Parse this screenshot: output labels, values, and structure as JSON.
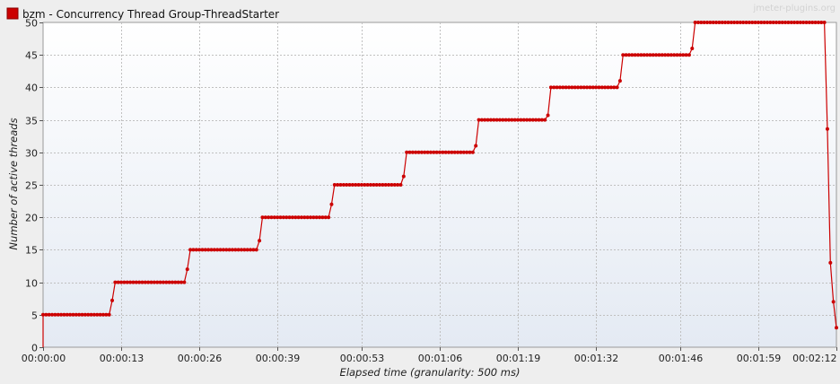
{
  "watermark": "jmeter-plugins.org",
  "chart_data": {
    "type": "line",
    "title": "",
    "xlabel": "Elapsed time (granularity: 500 ms)",
    "ylabel": "Number of active threads",
    "xlim_seconds": [
      0,
      132
    ],
    "ylim": [
      0,
      50
    ],
    "y_ticks": [
      0,
      5,
      10,
      15,
      20,
      25,
      30,
      35,
      40,
      45,
      50
    ],
    "x_ticks": [
      {
        "seconds": 0,
        "label": "00:00:00"
      },
      {
        "seconds": 13,
        "label": "00:00:13"
      },
      {
        "seconds": 26,
        "label": "00:00:26"
      },
      {
        "seconds": 39,
        "label": "00:00:39"
      },
      {
        "seconds": 53,
        "label": "00:00:53"
      },
      {
        "seconds": 66,
        "label": "00:01:06"
      },
      {
        "seconds": 79,
        "label": "00:01:19"
      },
      {
        "seconds": 92,
        "label": "00:01:32"
      },
      {
        "seconds": 106,
        "label": "00:01:46"
      },
      {
        "seconds": 119,
        "label": "00:01:59"
      },
      {
        "seconds": 132,
        "label": "00:02:12"
      }
    ],
    "grid": true,
    "legend_position": "top-left",
    "colors": {
      "series": "#cc0000",
      "grid": "#c0c0c0",
      "background_top": "#ffffff",
      "background_bottom": "#e4eaf3"
    },
    "series": [
      {
        "name": "bzm - Concurrency Thread Group-ThreadStarter",
        "steps": [
          {
            "t_start": 0,
            "t_end": 11,
            "value": 5
          },
          {
            "t_start": 11.5,
            "t_end": 11.5,
            "value": 7.2
          },
          {
            "t_start": 12,
            "t_end": 23.5,
            "value": 10
          },
          {
            "t_start": 24,
            "t_end": 24,
            "value": 12
          },
          {
            "t_start": 24.5,
            "t_end": 35.5,
            "value": 15
          },
          {
            "t_start": 36,
            "t_end": 36,
            "value": 16.4
          },
          {
            "t_start": 36.5,
            "t_end": 47.5,
            "value": 20
          },
          {
            "t_start": 48,
            "t_end": 48,
            "value": 22
          },
          {
            "t_start": 48.5,
            "t_end": 59.5,
            "value": 25
          },
          {
            "t_start": 60,
            "t_end": 60,
            "value": 26.3
          },
          {
            "t_start": 60.5,
            "t_end": 71.5,
            "value": 30
          },
          {
            "t_start": 72,
            "t_end": 72,
            "value": 31
          },
          {
            "t_start": 72.5,
            "t_end": 83.5,
            "value": 35
          },
          {
            "t_start": 84,
            "t_end": 84,
            "value": 35.7
          },
          {
            "t_start": 84.5,
            "t_end": 95.5,
            "value": 40
          },
          {
            "t_start": 96,
            "t_end": 96,
            "value": 41
          },
          {
            "t_start": 96.5,
            "t_end": 107.5,
            "value": 45
          },
          {
            "t_start": 108,
            "t_end": 108,
            "value": 46
          },
          {
            "t_start": 108.5,
            "t_end": 130,
            "value": 50
          },
          {
            "t_start": 130.5,
            "t_end": 130.5,
            "value": 33.6
          },
          {
            "t_start": 131,
            "t_end": 131,
            "value": 13
          },
          {
            "t_start": 131.5,
            "t_end": 131.5,
            "value": 7
          },
          {
            "t_start": 132,
            "t_end": 132,
            "value": 3
          }
        ]
      }
    ]
  }
}
